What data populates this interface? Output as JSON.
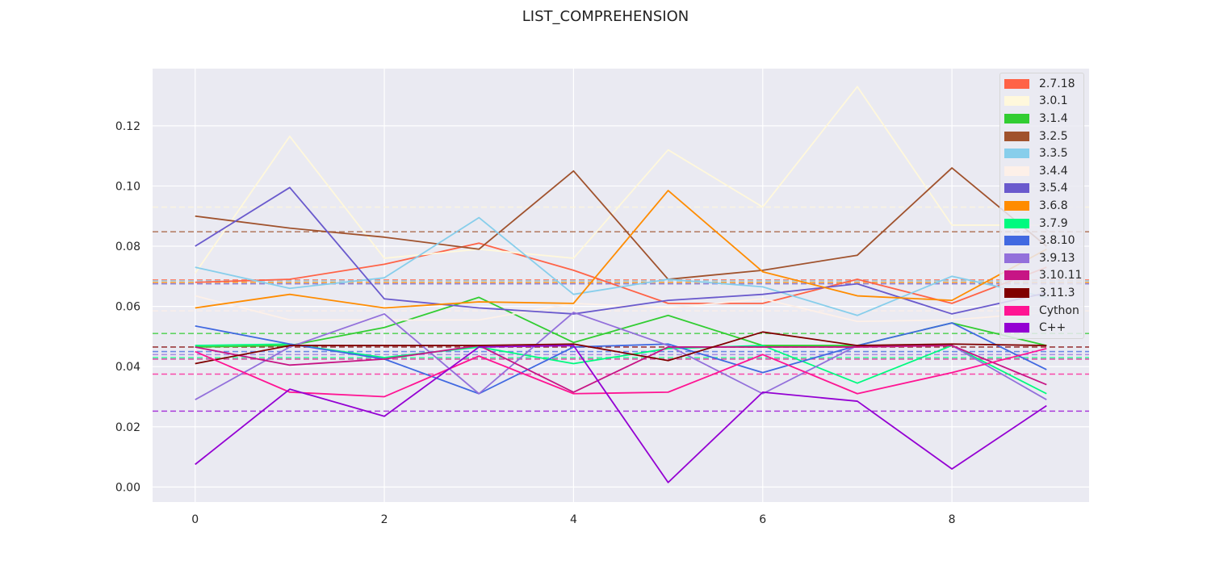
{
  "chart_data": {
    "type": "line",
    "title": "LIST_COMPREHENSION",
    "xlabel": "",
    "ylabel": "",
    "xlim": [
      -0.45,
      9.45
    ],
    "ylim": [
      -0.005,
      0.139
    ],
    "x_ticks": [
      0,
      2,
      4,
      6,
      8
    ],
    "y_ticks": [
      0.0,
      0.02,
      0.04,
      0.06,
      0.08,
      0.1,
      0.12
    ],
    "y_tick_labels": [
      "0.00",
      "0.02",
      "0.04",
      "0.06",
      "0.08",
      "0.10",
      "0.12"
    ],
    "grid": true,
    "legend_position": "top-right",
    "x": [
      0,
      1,
      2,
      3,
      4,
      5,
      6,
      7,
      8,
      9
    ],
    "series": [
      {
        "name": "2.7.18",
        "color": "#ff6347",
        "mean": 0.0688,
        "values": [
          0.068,
          0.069,
          0.074,
          0.081,
          0.072,
          0.061,
          0.061,
          0.069,
          0.061,
          0.073
        ]
      },
      {
        "name": "3.0.1",
        "color": "#fff8dc",
        "mean": 0.093,
        "values": [
          0.071,
          0.1165,
          0.076,
          0.079,
          0.076,
          0.112,
          0.093,
          0.133,
          0.087,
          0.087
        ]
      },
      {
        "name": "3.1.4",
        "color": "#32cd32",
        "mean": 0.051,
        "values": [
          0.0465,
          0.047,
          0.053,
          0.063,
          0.048,
          0.057,
          0.047,
          0.047,
          0.0545,
          0.047
        ]
      },
      {
        "name": "3.2.5",
        "color": "#a0522d",
        "mean": 0.0848,
        "values": [
          0.09,
          0.086,
          0.083,
          0.079,
          0.105,
          0.069,
          0.072,
          0.077,
          0.106,
          0.08
        ]
      },
      {
        "name": "3.3.5",
        "color": "#87ceeb",
        "mean": 0.0685,
        "values": [
          0.073,
          0.066,
          0.0695,
          0.0895,
          0.064,
          0.069,
          0.0665,
          0.057,
          0.07,
          0.063
        ]
      },
      {
        "name": "3.4.4",
        "color": "#fdf0e8",
        "mean": 0.0585,
        "values": [
          0.0635,
          0.0555,
          0.0555,
          0.0555,
          0.061,
          0.0595,
          0.0625,
          0.055,
          0.0555,
          0.058
        ]
      },
      {
        "name": "3.5.4",
        "color": "#6a5acd",
        "mean": 0.0675,
        "values": [
          0.08,
          0.0995,
          0.0625,
          0.0595,
          0.0575,
          0.062,
          0.064,
          0.0675,
          0.0575,
          0.0645
        ]
      },
      {
        "name": "3.6.8",
        "color": "#ff8c00",
        "mean": 0.068,
        "values": [
          0.0595,
          0.064,
          0.0595,
          0.0615,
          0.061,
          0.0985,
          0.0715,
          0.0635,
          0.062,
          0.079
        ]
      },
      {
        "name": "3.7.9",
        "color": "#00fa7f",
        "mean": 0.043,
        "values": [
          0.047,
          0.0475,
          0.043,
          0.0465,
          0.041,
          0.046,
          0.047,
          0.0345,
          0.047,
          0.031
        ]
      },
      {
        "name": "3.8.10",
        "color": "#4169e1",
        "mean": 0.045,
        "values": [
          0.0535,
          0.0475,
          0.0425,
          0.031,
          0.0465,
          0.0475,
          0.038,
          0.047,
          0.0545,
          0.039
        ]
      },
      {
        "name": "3.9.13",
        "color": "#9370db",
        "mean": 0.044,
        "values": [
          0.029,
          0.0465,
          0.0575,
          0.031,
          0.058,
          0.047,
          0.031,
          0.047,
          0.047,
          0.029
        ]
      },
      {
        "name": "3.10.11",
        "color": "#c71585",
        "mean": 0.0425,
        "values": [
          0.0465,
          0.0405,
          0.0425,
          0.047,
          0.0315,
          0.0465,
          0.0465,
          0.0465,
          0.047,
          0.034
        ]
      },
      {
        "name": "3.11.3",
        "color": "#800000",
        "mean": 0.0465,
        "values": [
          0.041,
          0.047,
          0.047,
          0.047,
          0.0475,
          0.042,
          0.0515,
          0.047,
          0.0475,
          0.047
        ]
      },
      {
        "name": "Cython",
        "color": "#ff1493",
        "mean": 0.0375,
        "values": [
          0.045,
          0.0315,
          0.03,
          0.0435,
          0.031,
          0.0315,
          0.044,
          0.031,
          0.038,
          0.046
        ]
      },
      {
        "name": "C++",
        "color": "#9400d3",
        "mean": 0.0252,
        "values": [
          0.0075,
          0.0325,
          0.0235,
          0.0465,
          0.047,
          0.0015,
          0.0315,
          0.0285,
          0.006,
          0.027
        ]
      }
    ]
  }
}
